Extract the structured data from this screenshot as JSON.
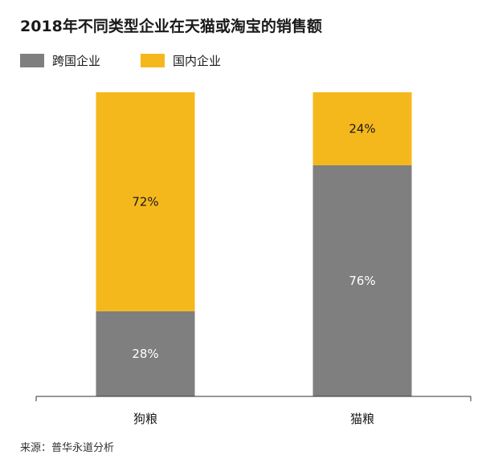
{
  "title": "2018年不同类型企业在天猫或淘宝的销售额",
  "legend": [
    {
      "label": "跨国企业",
      "color": "#7f7f7f"
    },
    {
      "label": "国内企业",
      "color": "#f5b81c"
    }
  ],
  "chart_data": {
    "type": "bar",
    "stacked": true,
    "percent_stacked": true,
    "categories": [
      "狗粮",
      "猫粮"
    ],
    "series": [
      {
        "name": "跨国企业",
        "values": [
          28,
          76
        ],
        "labels": [
          "28%",
          "76%"
        ],
        "color": "#7f7f7f"
      },
      {
        "name": "国内企业",
        "values": [
          72,
          24
        ],
        "labels": [
          "72%",
          "24%"
        ],
        "color": "#f5b81c"
      }
    ],
    "ylim": [
      0,
      100
    ],
    "grid": false,
    "legend_position": "top-left"
  },
  "source": "来源：普华永道分析"
}
